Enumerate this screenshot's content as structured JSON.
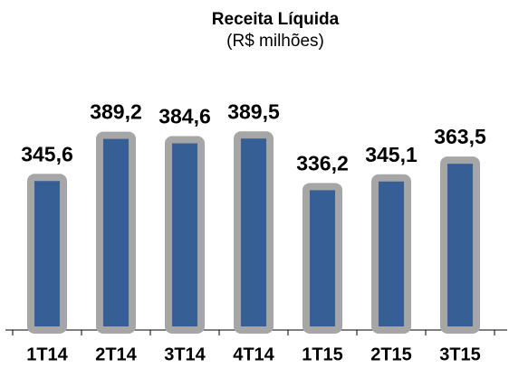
{
  "chart_data": {
    "type": "bar",
    "title": "Receita Líquida",
    "subtitle": "(R$ milhões)",
    "categories": [
      "1T14",
      "2T14",
      "3T14",
      "4T14",
      "1T15",
      "2T15",
      "3T15"
    ],
    "values": [
      345.6,
      389.2,
      384.6,
      389.5,
      336.2,
      345.1,
      363.5
    ],
    "value_labels": [
      "345,6",
      "389,2",
      "384,6",
      "389,5",
      "336,2",
      "345,1",
      "363,5"
    ],
    "color": "#365f96",
    "border_color": "#a6a6a6",
    "ylim": [
      188,
      400
    ]
  }
}
